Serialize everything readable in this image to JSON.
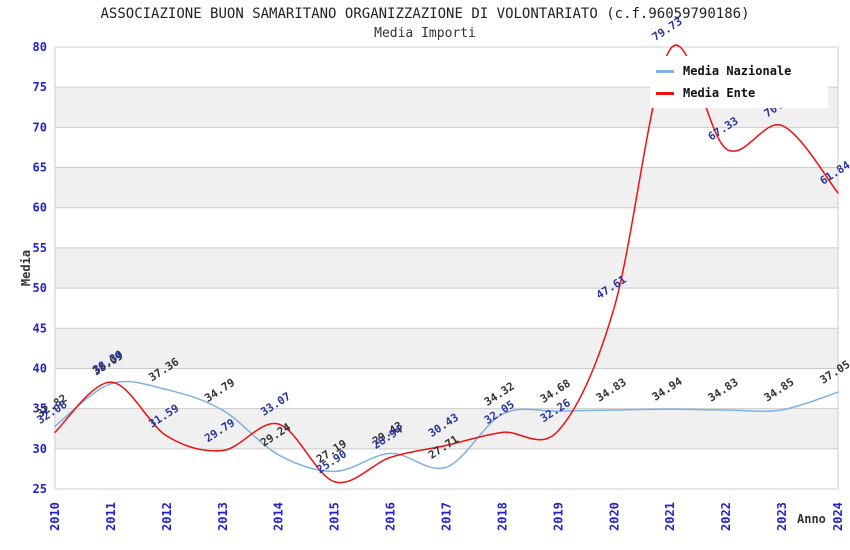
{
  "title": "ASSOCIAZIONE BUON SAMARITANO ORGANIZZAZIONE DI VOLONTARIATO (c.f.96059790186)",
  "subtitle": "Media Importi",
  "legend": [
    {
      "label": "Media Nazionale",
      "color": "#7fb1e2"
    },
    {
      "label": "Media Ente",
      "color": "#ee1111"
    }
  ],
  "axes": {
    "y_label": "Media",
    "x_label": "Anno",
    "y_ticks": [
      25,
      30,
      35,
      40,
      45,
      50,
      55,
      60,
      65,
      70,
      75,
      80
    ],
    "tick_color": "#2222cc",
    "axis_title_color": "#333333"
  },
  "colors": {
    "grid_line": "#cccccc",
    "band_gray": "#f0f0f0",
    "band_white": "#ffffff",
    "plot_border": "#cccccc",
    "nazionale_label": "#333333",
    "ente_label": "#2b35a0"
  },
  "chart_data": {
    "type": "line",
    "title": "ASSOCIAZIONE BUON SAMARITANO ORGANIZZAZIONE DI VOLONTARIATO (c.f.96059790186)",
    "subtitle": "Media Importi",
    "xlabel": "Anno",
    "ylabel": "Media",
    "ylim": [
      25,
      80
    ],
    "y_tick_step": 5,
    "grid": true,
    "alternating_bands": true,
    "legend_position": "top-right",
    "categories": [
      "2010",
      "2011",
      "2012",
      "2013",
      "2014",
      "2015",
      "2016",
      "2017",
      "2018",
      "2019",
      "2020",
      "2021",
      "2022",
      "2023",
      "2024"
    ],
    "series": [
      {
        "name": "Media Nazionale",
        "line_color": "#7fb1e2",
        "label_color": "#333333",
        "values": [
          32.82,
          38.09,
          37.36,
          34.79,
          29.24,
          27.19,
          29.43,
          27.71,
          34.32,
          34.68,
          34.83,
          34.94,
          34.83,
          34.85,
          37.05
        ]
      },
      {
        "name": "Media Ente",
        "line_color": "#ee1111",
        "label_color": "#2b35a0",
        "values": [
          32.06,
          38.3,
          31.59,
          29.79,
          33.07,
          25.9,
          28.94,
          30.43,
          32.05,
          32.26,
          47.61,
          79.73,
          67.33,
          70.22,
          61.84
        ]
      }
    ]
  }
}
